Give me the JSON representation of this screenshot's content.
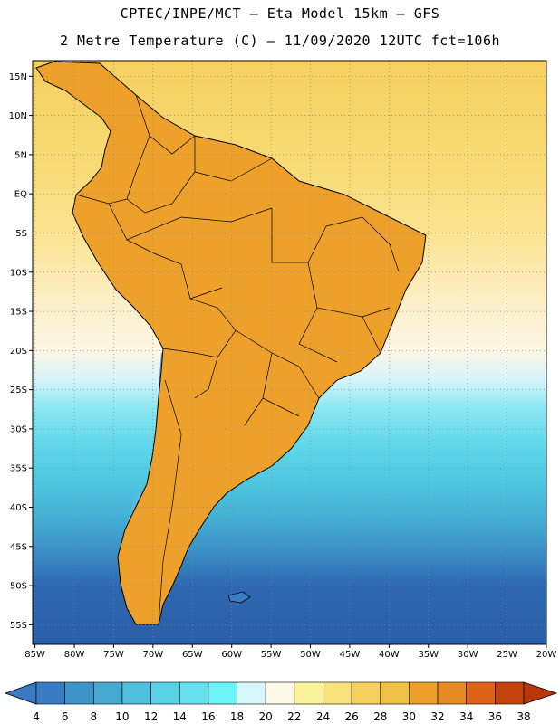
{
  "header": {
    "line1": "CPTEC/INPE/MCT –  Eta Model 15km – GFS",
    "line2": "2 Metre Temperature (C) – 11/09/2020 12UTC fct=106h"
  },
  "map": {
    "lat_labels": [
      "15N",
      "10N",
      "5N",
      "EQ",
      "5S",
      "10S",
      "15S",
      "20S",
      "25S",
      "30S",
      "35S",
      "40S",
      "45S",
      "50S",
      "55S"
    ],
    "lon_labels": [
      "85W",
      "80W",
      "75W",
      "70W",
      "65W",
      "60W",
      "55W",
      "50W",
      "45W",
      "40W",
      "35W",
      "30W",
      "25W",
      "20W"
    ],
    "lat_range": [
      17,
      -57.5
    ],
    "lon_range": [
      -85.3,
      -20
    ],
    "ocean_bands": [
      {
        "lat": 17,
        "color": "#f5d060"
      },
      {
        "lat": 5,
        "color": "#f7da72"
      },
      {
        "lat": -5,
        "color": "#fbe390"
      },
      {
        "lat": -14,
        "color": "#fcefc8"
      },
      {
        "lat": -20,
        "color": "#fdf6e4"
      },
      {
        "lat": -24,
        "color": "#d2f4fb"
      },
      {
        "lat": -27,
        "color": "#8fe8f2"
      },
      {
        "lat": -32,
        "color": "#60d7ea"
      },
      {
        "lat": -37,
        "color": "#4ec6df"
      },
      {
        "lat": -41,
        "color": "#45b2d6"
      },
      {
        "lat": -45,
        "color": "#3d94c8"
      },
      {
        "lat": -50,
        "color": "#2e68b2"
      },
      {
        "lat": -57.5,
        "color": "#2a5ea8"
      }
    ],
    "land_colors": {
      "tropical": "#eda02a",
      "hot": "#d9701c",
      "warm": "#f5c652",
      "mild": "#fbe6a8",
      "andes": "#3a7cc4",
      "cool": "#8fd9ee",
      "patagonia": "#5fb8dd"
    }
  },
  "colorbar": {
    "labels": [
      "4",
      "6",
      "8",
      "10",
      "12",
      "14",
      "16",
      "18",
      "20",
      "22",
      "24",
      "26",
      "28",
      "30",
      "32",
      "34",
      "36",
      "38"
    ],
    "colors": [
      "#3a7cc4",
      "#3a7cc4",
      "#3e93c7",
      "#45a9d2",
      "#4ec0dd",
      "#58d3e6",
      "#63e2ee",
      "#6cf4f8",
      "#d6f6fb",
      "#fef8e6",
      "#fdf29c",
      "#f9e27a",
      "#f4d15c",
      "#eec043",
      "#eda02a",
      "#e58a24",
      "#dc6318",
      "#c4420c",
      "#b8380a"
    ]
  }
}
